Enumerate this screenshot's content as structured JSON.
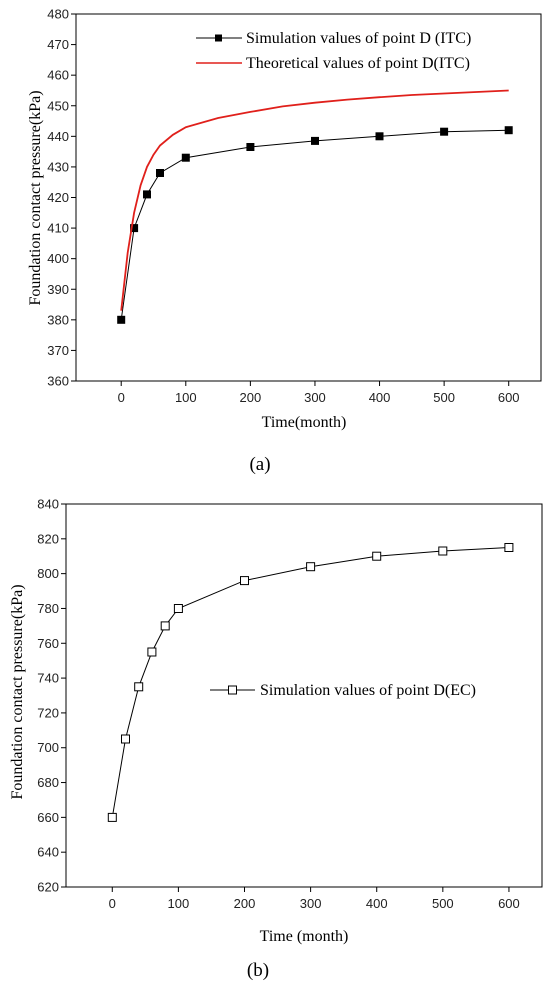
{
  "chart_data": [
    {
      "type": "line",
      "panel_label": "(a)",
      "xlabel": "Time(month)",
      "ylabel": "Foundation contact pressure(kPa)",
      "xlim": [
        -70,
        650
      ],
      "ylim": [
        360,
        480
      ],
      "xticks": [
        0,
        100,
        200,
        300,
        400,
        500,
        600
      ],
      "yticks": [
        360,
        370,
        380,
        390,
        400,
        410,
        420,
        430,
        440,
        450,
        460,
        470,
        480
      ],
      "legend_position": "top-right",
      "grid": false,
      "series": [
        {
          "name": "Simulation values of point D (ITC)",
          "color": "#000000",
          "marker": "filled-square",
          "x": [
            0,
            20,
            40,
            60,
            100,
            200,
            300,
            400,
            500,
            600
          ],
          "y": [
            380,
            410,
            421,
            428,
            433,
            436.5,
            438.5,
            440,
            441.5,
            442
          ]
        },
        {
          "name": "Theoretical values of point D(ITC)",
          "color": "#e0201b",
          "marker": "none",
          "x": [
            0,
            10,
            20,
            30,
            40,
            50,
            60,
            80,
            100,
            150,
            200,
            250,
            300,
            350,
            400,
            450,
            500,
            550,
            600
          ],
          "y": [
            383,
            402,
            415,
            424,
            430,
            434,
            437,
            440.5,
            443,
            446,
            448,
            449.8,
            451,
            452,
            452.8,
            453.5,
            454,
            454.5,
            455
          ]
        }
      ]
    },
    {
      "type": "line",
      "panel_label": "(b)",
      "xlabel": "Time (month)",
      "ylabel": "Foundation contact pressure(kPa)",
      "xlim": [
        -70,
        650
      ],
      "ylim": [
        620,
        840
      ],
      "xticks": [
        0,
        100,
        200,
        300,
        400,
        500,
        600
      ],
      "yticks": [
        620,
        640,
        660,
        680,
        700,
        720,
        740,
        760,
        780,
        800,
        820,
        840
      ],
      "legend_position": "center-right",
      "grid": false,
      "series": [
        {
          "name": "Simulation values of point D(EC)",
          "color": "#000000",
          "marker": "open-square",
          "x": [
            0,
            20,
            40,
            60,
            80,
            100,
            200,
            300,
            400,
            500,
            600
          ],
          "y": [
            660,
            705,
            735,
            755,
            770,
            780,
            796,
            804,
            810,
            813,
            815
          ]
        }
      ]
    }
  ]
}
